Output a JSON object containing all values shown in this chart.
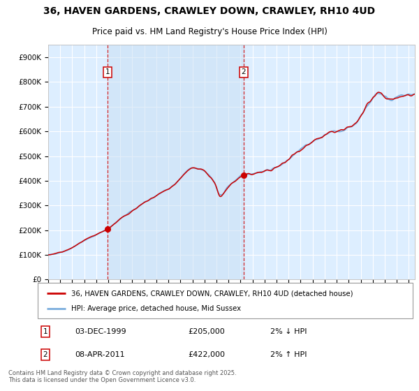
{
  "title_line1": "36, HAVEN GARDENS, CRAWLEY DOWN, CRAWLEY, RH10 4UD",
  "title_line2": "Price paid vs. HM Land Registry's House Price Index (HPI)",
  "purchase1_date": "03-DEC-1999",
  "purchase1_price": 205000,
  "purchase1_label": "1",
  "purchase1_pct": "2% ↓ HPI",
  "purchase2_date": "08-APR-2011",
  "purchase2_price": 422000,
  "purchase2_label": "2",
  "purchase2_pct": "2% ↑ HPI",
  "legend_line1": "36, HAVEN GARDENS, CRAWLEY DOWN, CRAWLEY, RH10 4UD (detached house)",
  "legend_line2": "HPI: Average price, detached house, Mid Sussex",
  "footnote": "Contains HM Land Registry data © Crown copyright and database right 2025.\nThis data is licensed under the Open Government Licence v3.0.",
  "line_color_red": "#cc0000",
  "line_color_blue": "#7aaddd",
  "background_color": "#ddeeff",
  "grid_color": "#ffffff",
  "ylim": [
    0,
    950000
  ],
  "yticks": [
    0,
    100000,
    200000,
    300000,
    400000,
    500000,
    600000,
    700000,
    800000,
    900000
  ],
  "purchase1_year": 1999.92,
  "purchase2_year": 2011.27
}
